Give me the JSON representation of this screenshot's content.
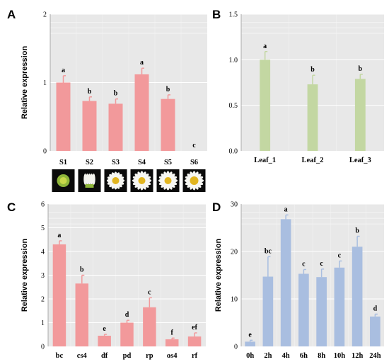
{
  "chart_data": [
    {
      "panel": "A",
      "type": "bar",
      "categories": [
        "S1",
        "S2",
        "S3",
        "S4",
        "S5",
        "S6"
      ],
      "values": [
        1.0,
        0.73,
        0.69,
        1.12,
        0.76,
        0.0
      ],
      "errors": [
        0.1,
        0.06,
        0.07,
        0.09,
        0.06,
        0.0
      ],
      "significance": [
        "a",
        "b",
        "b",
        "a",
        "b",
        "c"
      ],
      "ylabel": "Relative expression",
      "ylim": [
        0,
        2
      ],
      "yticks": [
        "0",
        "1",
        "2"
      ],
      "bar_color": "#f2999b",
      "has_flower_images": true
    },
    {
      "panel": "B",
      "type": "bar",
      "categories": [
        "Leaf_1",
        "Leaf_2",
        "Leaf_3"
      ],
      "values": [
        1.0,
        0.73,
        0.79
      ],
      "errors": [
        0.09,
        0.1,
        0.05
      ],
      "significance": [
        "a",
        "b",
        "b"
      ],
      "ylabel": "",
      "ylim": [
        0,
        1.5
      ],
      "yticks": [
        "0.0",
        "0.5",
        "1.0",
        "1.5"
      ],
      "bar_color": "#c3d7a2"
    },
    {
      "panel": "C",
      "type": "bar",
      "categories": [
        "bc",
        "cs4",
        "df",
        "pd",
        "rp",
        "os4",
        "rf"
      ],
      "values": [
        4.3,
        2.65,
        0.45,
        1.0,
        1.65,
        0.3,
        0.42
      ],
      "errors": [
        0.15,
        0.35,
        0.06,
        0.1,
        0.4,
        0.05,
        0.15
      ],
      "significance": [
        "a",
        "b",
        "e",
        "d",
        "c",
        "f",
        "ef"
      ],
      "ylabel": "Relative expression",
      "ylim": [
        0,
        6
      ],
      "yticks": [
        "0",
        "1",
        "2",
        "3",
        "4",
        "5",
        "6"
      ],
      "bar_color": "#f2999b"
    },
    {
      "panel": "D",
      "type": "bar",
      "categories": [
        "0h",
        "2h",
        "4h",
        "6h",
        "8h",
        "10h",
        "12h",
        "24h"
      ],
      "values": [
        1.0,
        14.7,
        26.8,
        15.3,
        14.6,
        16.6,
        21.0,
        6.3
      ],
      "errors": [
        0.3,
        4.2,
        0.9,
        0.9,
        1.7,
        1.4,
        2.2,
        0.5
      ],
      "significance": [
        "e",
        "bc",
        "a",
        "c",
        "c",
        "c",
        "b",
        "d"
      ],
      "ylabel": "Relative expression",
      "ylim": [
        0,
        30
      ],
      "yticks": [
        "0",
        "10",
        "20",
        "30"
      ],
      "bar_color": "#a9bee0"
    }
  ]
}
